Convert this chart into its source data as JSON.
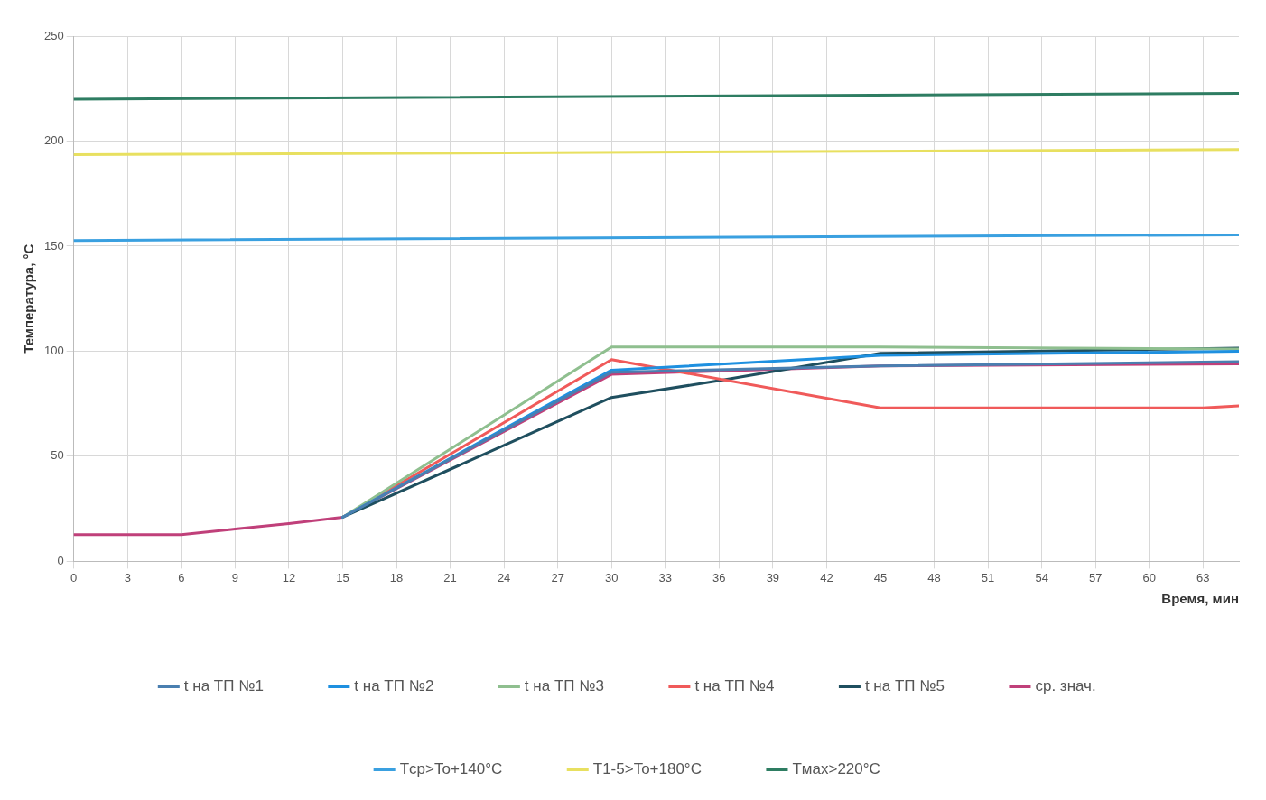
{
  "chart_data": {
    "type": "line",
    "xlabel": "Время, мин",
    "ylabel": "Температура, °C",
    "xlim": [
      0,
      65
    ],
    "xticks": [
      0,
      3,
      6,
      9,
      12,
      15,
      18,
      21,
      24,
      27,
      30,
      33,
      36,
      39,
      42,
      45,
      48,
      51,
      54,
      57,
      60,
      63
    ],
    "ylim": [
      0,
      250
    ],
    "yticks": [
      0,
      50,
      100,
      150,
      200,
      250
    ],
    "grid": true,
    "legend": "bottom",
    "marker": "none",
    "line_style": "solid",
    "series": [
      {
        "name": "t на ТП №1",
        "color": "#4a7fb0",
        "x": [
          15,
          30,
          45,
          65
        ],
        "values": [
          21,
          90,
          93,
          95
        ]
      },
      {
        "name": "t на ТП №2",
        "color": "#1e90e0",
        "x": [
          15,
          30,
          45,
          65
        ],
        "values": [
          21,
          91,
          98,
          100
        ]
      },
      {
        "name": "t на ТП №3",
        "color": "#8fbf8f",
        "x": [
          15,
          30,
          45,
          65
        ],
        "values": [
          21,
          102,
          102,
          101
        ]
      },
      {
        "name": "t на ТП №4",
        "color": "#f05a5a",
        "x": [
          15,
          30,
          45,
          63,
          65
        ],
        "values": [
          21,
          96,
          73,
          73,
          74
        ]
      },
      {
        "name": "t на ТП №5",
        "color": "#1f4f5f",
        "x": [
          15,
          30,
          36,
          45,
          65
        ],
        "values": [
          21,
          78,
          86,
          99,
          101.5
        ]
      },
      {
        "name": "ср. знач.",
        "color": "#c0407a",
        "x": [
          0,
          3,
          6,
          9,
          12,
          15,
          30,
          45,
          65
        ],
        "values": [
          12.7,
          12.7,
          12.7,
          15.4,
          18,
          21,
          89,
          93,
          94
        ]
      },
      {
        "name": "Tср>To+140°C",
        "color": "#3aa0e0",
        "x": [
          0,
          65
        ],
        "values": [
          152.7,
          155.4
        ]
      },
      {
        "name": "T1-5>To+180°C",
        "color": "#e8e060",
        "x": [
          0,
          65
        ],
        "values": [
          193.5,
          196
        ]
      },
      {
        "name": "Tмах>220°C",
        "color": "#2e7d62",
        "x": [
          0,
          65
        ],
        "values": [
          220,
          222.7
        ]
      }
    ]
  }
}
